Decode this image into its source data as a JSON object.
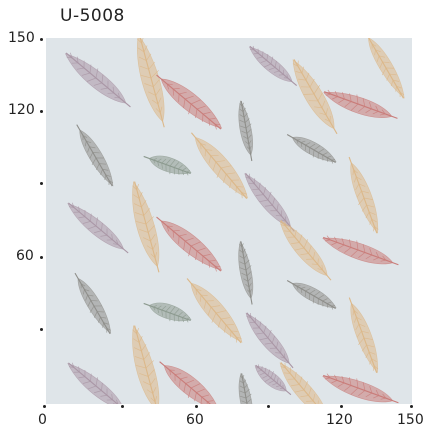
{
  "title": "U-5008",
  "axes": {
    "y_labels": [
      "150",
      "120",
      "60"
    ],
    "x_labels": [
      "0",
      "60",
      "120",
      "150"
    ]
  },
  "swatch": {
    "background": "#dfe5e9",
    "feather_colors": {
      "rose": "#c97c79",
      "tan": "#dcb889",
      "mauve": "#a996a5",
      "grey": "#8e8e8a",
      "grey_green": "#8c9a8f"
    }
  }
}
